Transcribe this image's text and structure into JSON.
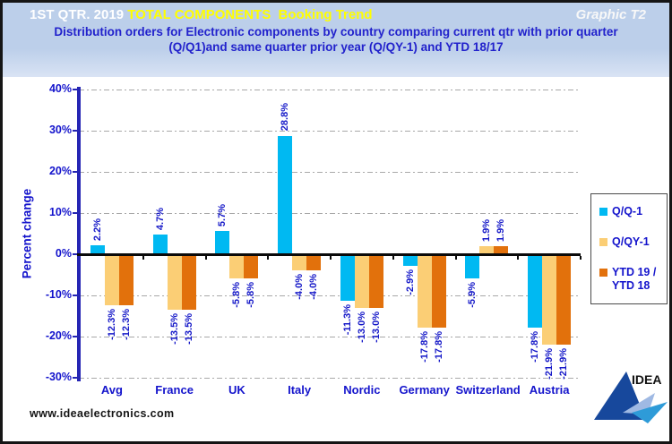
{
  "header": {
    "period": "1ST QTR. 2019 ",
    "title": "TOTAL COMPONENTS  Booking Trend",
    "graphic_ref": "Graphic T2",
    "subtitle_line1": "Distribution  orders for Electronic components by country comparing  current  qtr with prior quarter",
    "subtitle_line2": "(Q/Q1)and same quarter prior year (Q/QY-1)  and YTD  18/17"
  },
  "chart_data": {
    "type": "bar",
    "title": "1ST QTR. 2019 TOTAL COMPONENTS Booking Trend",
    "xlabel": "",
    "ylabel": "Percent change",
    "ylim": [
      -30,
      40
    ],
    "ytick_step": 10,
    "ytick_labels": [
      "40%",
      "30%",
      "20%",
      "10%",
      "0%",
      "-10%",
      "-20%",
      "-30%"
    ],
    "grid": "horizontal-dashed",
    "legend_position": "right",
    "categories": [
      "Avg",
      "France",
      "UK",
      "Italy",
      "Nordic",
      "Germany",
      "Switzerland",
      "Austria"
    ],
    "series": [
      {
        "name": "Q/Q-1",
        "color": "#00B9F2",
        "values": [
          2.2,
          4.7,
          5.7,
          28.8,
          -11.3,
          -2.9,
          -5.9,
          -17.8
        ]
      },
      {
        "name": "Q/QY-1",
        "color": "#FBCE75",
        "values": [
          -12.3,
          -13.5,
          -5.8,
          -4.0,
          -13.0,
          -17.8,
          1.9,
          -21.9
        ]
      },
      {
        "name": "YTD 19 / YTD 18",
        "color": "#E2710C",
        "values": [
          -12.3,
          -13.5,
          -5.8,
          -4.0,
          -13.0,
          -17.8,
          1.9,
          -21.9
        ]
      }
    ],
    "bar_label_format": "{value:.1f}%"
  },
  "legend": {
    "items": [
      {
        "label": "Q/Q-1"
      },
      {
        "label": "Q/QY-1"
      },
      {
        "label": "YTD 19 /\nYTD 18"
      }
    ]
  },
  "footer": {
    "website": "www.ideaelectronics.com"
  },
  "logo": {
    "text": "IDEA"
  },
  "colors": {
    "header_band": "#BCCFEA",
    "title_yellow": "#FFFF00",
    "text_blue": "#1414CC",
    "axis_blue": "#2525B4",
    "bar_cyan": "#00B9F2",
    "bar_tan": "#FBCE75",
    "bar_orange": "#E2710C"
  }
}
